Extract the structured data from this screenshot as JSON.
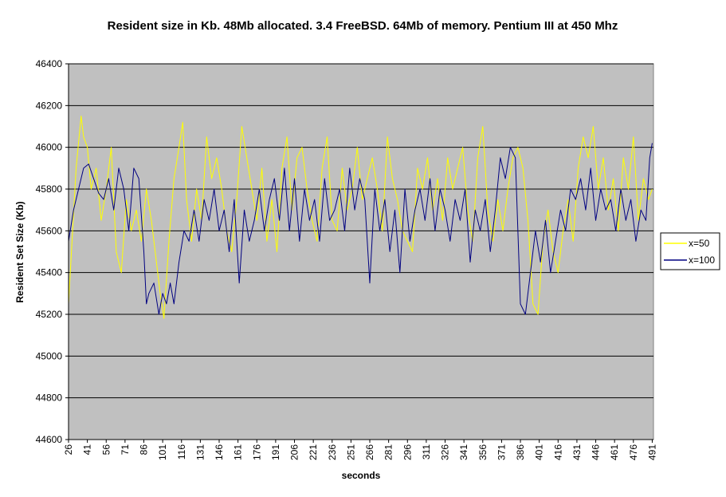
{
  "chart_data": {
    "type": "line",
    "title": "Resident size in Kb. 48Mb allocated. 3.4 FreeBSD. 64Mb of memory. Pentium III at 450 Mhz",
    "xlabel": "seconds",
    "ylabel": "Resident Set Size (Kb)",
    "ylim": [
      44600,
      46400
    ],
    "y_ticks": [
      44600,
      44800,
      45000,
      45200,
      45400,
      45600,
      45800,
      46000,
      46200,
      46400
    ],
    "x_range": [
      26,
      492
    ],
    "x_ticks": [
      26,
      41,
      56,
      71,
      86,
      101,
      116,
      131,
      146,
      161,
      176,
      191,
      206,
      221,
      236,
      251,
      266,
      281,
      296,
      311,
      326,
      341,
      356,
      371,
      386,
      401,
      416,
      431,
      446,
      461,
      476,
      491
    ],
    "grid": "horizontal",
    "legend_position": "right",
    "plot_background": "#c0c0c0",
    "series": [
      {
        "name": "x=50",
        "color": "#ffff00",
        "x": [
          26,
          32,
          36,
          38,
          41,
          44,
          48,
          52,
          56,
          60,
          64,
          68,
          72,
          76,
          80,
          84,
          88,
          92,
          96,
          99,
          102,
          106,
          110,
          114,
          117,
          120,
          124,
          128,
          132,
          136,
          140,
          144,
          148,
          152,
          156,
          160,
          164,
          168,
          172,
          176,
          180,
          184,
          188,
          192,
          196,
          200,
          204,
          208,
          212,
          216,
          220,
          224,
          228,
          232,
          236,
          240,
          244,
          248,
          252,
          256,
          260,
          264,
          268,
          272,
          276,
          280,
          284,
          288,
          292,
          296,
          300,
          304,
          308,
          312,
          316,
          320,
          324,
          328,
          332,
          336,
          340,
          344,
          348,
          352,
          356,
          360,
          364,
          368,
          372,
          376,
          380,
          384,
          388,
          392,
          396,
          400,
          404,
          408,
          412,
          416,
          420,
          424,
          428,
          432,
          436,
          440,
          444,
          448,
          452,
          456,
          460,
          464,
          468,
          472,
          476,
          480,
          484,
          488,
          491
        ],
        "values": [
          45250,
          45900,
          46150,
          46050,
          46000,
          45800,
          45900,
          45650,
          45800,
          46000,
          45500,
          45400,
          45750,
          45600,
          45700,
          45550,
          45800,
          45650,
          45450,
          45300,
          45180,
          45550,
          45850,
          46000,
          46120,
          45750,
          45550,
          45800,
          45650,
          46050,
          45850,
          45950,
          45800,
          45600,
          45500,
          45750,
          46100,
          45950,
          45800,
          45650,
          45900,
          45550,
          45750,
          45500,
          45900,
          46050,
          45700,
          45950,
          46000,
          45800,
          45650,
          45550,
          45900,
          46050,
          45650,
          45600,
          45900,
          45700,
          45800,
          46000,
          45750,
          45850,
          45950,
          45800,
          45600,
          46050,
          45850,
          45750,
          45600,
          45550,
          45500,
          45900,
          45800,
          45950,
          45700,
          45850,
          45650,
          45950,
          45800,
          45900,
          46000,
          45700,
          45550,
          45950,
          46100,
          45700,
          45550,
          45750,
          45600,
          45800,
          45950,
          46000,
          45900,
          45650,
          45250,
          45200,
          45550,
          45700,
          45500,
          45400,
          45600,
          45750,
          45550,
          45900,
          46050,
          45950,
          46100,
          45800,
          45950,
          45700,
          45850,
          45600,
          45950,
          45800,
          46050,
          45650,
          45850,
          45750,
          45800
        ]
      },
      {
        "name": "x=100",
        "color": "#000080",
        "x": [
          26,
          30,
          34,
          38,
          42,
          46,
          50,
          54,
          58,
          62,
          66,
          70,
          74,
          78,
          82,
          86,
          88,
          90,
          94,
          98,
          101,
          104,
          107,
          110,
          114,
          118,
          122,
          126,
          130,
          134,
          138,
          142,
          146,
          150,
          154,
          158,
          162,
          166,
          170,
          174,
          178,
          182,
          186,
          190,
          194,
          198,
          202,
          206,
          210,
          214,
          218,
          222,
          226,
          230,
          234,
          238,
          242,
          246,
          250,
          254,
          258,
          262,
          266,
          270,
          274,
          278,
          282,
          286,
          290,
          294,
          298,
          302,
          306,
          310,
          314,
          318,
          322,
          326,
          330,
          334,
          338,
          342,
          346,
          350,
          354,
          358,
          362,
          366,
          370,
          374,
          378,
          382,
          386,
          390,
          394,
          398,
          402,
          406,
          410,
          414,
          418,
          422,
          426,
          430,
          434,
          438,
          442,
          446,
          450,
          454,
          458,
          462,
          466,
          470,
          474,
          478,
          482,
          486,
          489,
          491
        ],
        "values": [
          45550,
          45700,
          45800,
          45900,
          45920,
          45850,
          45780,
          45750,
          45850,
          45700,
          45900,
          45800,
          45600,
          45900,
          45850,
          45500,
          45250,
          45300,
          45350,
          45200,
          45300,
          45250,
          45350,
          45250,
          45450,
          45600,
          45550,
          45700,
          45550,
          45750,
          45650,
          45800,
          45600,
          45700,
          45500,
          45750,
          45350,
          45700,
          45550,
          45650,
          45800,
          45600,
          45750,
          45850,
          45650,
          45900,
          45600,
          45850,
          45550,
          45800,
          45650,
          45750,
          45550,
          45850,
          45650,
          45700,
          45800,
          45600,
          45900,
          45700,
          45850,
          45750,
          45350,
          45800,
          45600,
          45750,
          45500,
          45700,
          45400,
          45800,
          45550,
          45700,
          45800,
          45650,
          45850,
          45600,
          45800,
          45700,
          45550,
          45750,
          45650,
          45800,
          45450,
          45700,
          45600,
          45750,
          45500,
          45700,
          45950,
          45850,
          46000,
          45950,
          45250,
          45200,
          45400,
          45600,
          45450,
          45650,
          45400,
          45550,
          45700,
          45600,
          45800,
          45750,
          45850,
          45700,
          45900,
          45650,
          45800,
          45700,
          45750,
          45600,
          45800,
          45650,
          45750,
          45550,
          45700,
          45650,
          45950,
          46020
        ]
      }
    ]
  }
}
